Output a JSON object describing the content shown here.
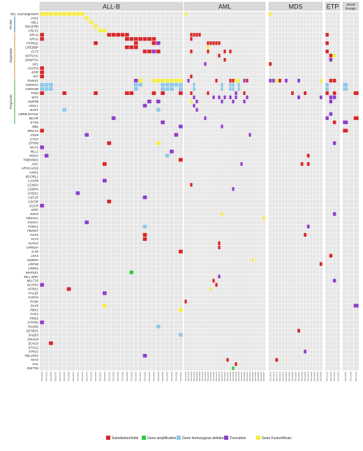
{
  "chart_data": {
    "type": "heatmap",
    "genes": [
      "MLL rearrangement",
      "JAK2",
      "ABL1",
      "PDGFRB",
      "CRLF2",
      "NRAS",
      "KRAS",
      "PTPN11",
      "CREBBP",
      "FLT3",
      "NOTCH1",
      "DNMT3A",
      "NF1",
      "FGFR3",
      "KDR",
      "KIT",
      "RUNX1",
      "CDKN2A",
      "CDKN2B",
      "TP53",
      "WT1",
      "NUP98",
      "ASXL1",
      "IKZF1",
      "CBFB-MYH11",
      "BCOR",
      "ETV6",
      "RB1",
      "BRCA2",
      "CD39",
      "CTCF",
      "EP300",
      "MLH1",
      "MLL2",
      "MSH2",
      "TMEM30A",
      "APC",
      "ARHGAP26",
      "AXIN1",
      "BCORL1",
      "CASP8",
      "CCND2",
      "CEBPA",
      "CHEK2",
      "CSF1R",
      "CSF3R",
      "EGFR",
      "ERG",
      "EZH2",
      "FBXO11",
      "FANCA",
      "FANCL",
      "FBXW7",
      "FGF6",
      "FLT4",
      "GATA2",
      "GRIN2A",
      "IL7R",
      "JAK3",
      "KDM5A",
      "LRP1B",
      "LRRK2",
      "MAP2K1",
      "MLL other",
      "MLLT10",
      "NCOR1",
      "NTRK1",
      "PALB2",
      "PARP4",
      "PASK",
      "PAX5",
      "PBX1",
      "PHF6",
      "PMS2",
      "PTPRD",
      "RAD50",
      "SETBP1",
      "SH2B3",
      "SMAD4",
      "SOX10",
      "STAG2",
      "STK11",
      "TBL1XR1",
      "TET2",
      "VHL",
      "ZNF703"
    ],
    "categories": [
      {
        "label": "Ph-like",
        "start": 1,
        "end": 4,
        "color": "#3d6bb5"
      },
      {
        "label": "Targetable",
        "start": 5,
        "end": 15,
        "color": "#e08a24"
      },
      {
        "label": "Prognostic",
        "start": 16,
        "end": 26,
        "color": "#39a84a"
      }
    ],
    "panels": [
      {
        "title": "ALL-B",
        "samples": [
          "TSH13696",
          "TSH13214",
          "TSH14030",
          "TSH15787",
          "TSH14447",
          "TSH14527",
          "TSH14550",
          "TSH15424",
          "TSH15421",
          "TSH15423",
          "TSH14472",
          "TSH14533",
          "TSH15428",
          "TSH14527",
          "TSH15423",
          "TSH14541",
          "TSH15429",
          "TSH15185",
          "TSH16183",
          "TSH15458",
          "TSH15209",
          "TSH15203",
          "TSH15427",
          "TSH15196",
          "TSH15423",
          "TSH15425",
          "TSH15425",
          "TSH15486",
          "TSH15476",
          "TSH15452",
          "TSH15385",
          "TSH15367"
        ]
      },
      {
        "title": "AML",
        "samples": [
          "TSH14155",
          "TSH14145",
          "TSH14220",
          "TSH14355",
          "TSH14364",
          "TSH14505",
          "TSH14446",
          "TSH14455",
          "TSH14546",
          "TSH15125",
          "TSH15150",
          "TSH15117",
          "TSH15176",
          "TSH15179",
          "TSH15203",
          "TSH15207",
          "TSH15209",
          "TSH15345",
          "TSH15360",
          "TSH15399",
          "TSH15357",
          "TSH15358",
          "TSH15313",
          "TSH15342",
          "TSH15399",
          "TSH15491",
          "TSH15488",
          "TSH15493",
          "TSH15407"
        ]
      },
      {
        "title": "MDS",
        "samples": [
          "TSH14010",
          "TSH14413",
          "TSH14278",
          "TSH14431",
          "TSH14520",
          "TSH14529",
          "TSH15003",
          "TSH15090",
          "TSH15087",
          "TSH15187",
          "TSH15180",
          "TSH15249",
          "TSH15270",
          "TSH15292",
          "TSH15282",
          "TSH15420",
          "TSH15308"
        ]
      },
      {
        "title": "ETP",
        "samples": [
          "TSH13762",
          "TSH15326",
          "TSH15378",
          "TSH13910"
        ]
      },
      {
        "title": "Mixed lineage",
        "samples": [
          "TSH15451",
          "TSH13345",
          "TSH13410"
        ]
      }
    ],
    "cells": [
      [
        0,
        0,
        0,
        4
      ],
      [
        0,
        1,
        0,
        4
      ],
      [
        0,
        2,
        0,
        4
      ],
      [
        0,
        3,
        0,
        4
      ],
      [
        0,
        4,
        0,
        4
      ],
      [
        0,
        5,
        0,
        4
      ],
      [
        0,
        6,
        0,
        4
      ],
      [
        0,
        7,
        0,
        4
      ],
      [
        0,
        8,
        0,
        4
      ],
      [
        0,
        9,
        0,
        4
      ],
      [
        0,
        10,
        1,
        4
      ],
      [
        0,
        11,
        2,
        4
      ],
      [
        0,
        12,
        3,
        4
      ],
      [
        0,
        13,
        4,
        4
      ],
      [
        0,
        14,
        4,
        4
      ],
      [
        0,
        15,
        5,
        0
      ],
      [
        0,
        16,
        5,
        0
      ],
      [
        0,
        17,
        5,
        0
      ],
      [
        0,
        18,
        5,
        0
      ],
      [
        0,
        19,
        5,
        0
      ],
      [
        0,
        0,
        5,
        0
      ],
      [
        0,
        0,
        6,
        0
      ],
      [
        0,
        19,
        6,
        0
      ],
      [
        0,
        20,
        6,
        0
      ],
      [
        0,
        21,
        6,
        0
      ],
      [
        0,
        22,
        6,
        0
      ],
      [
        0,
        23,
        6,
        0
      ],
      [
        0,
        24,
        6,
        0
      ],
      [
        0,
        25,
        6,
        0
      ],
      [
        0,
        12,
        7,
        0
      ],
      [
        0,
        21,
        7,
        0
      ],
      [
        0,
        25,
        7,
        0
      ],
      [
        0,
        26,
        7,
        3
      ],
      [
        0,
        19,
        8,
        0
      ],
      [
        0,
        20,
        8,
        0
      ],
      [
        0,
        21,
        8,
        0
      ],
      [
        0,
        23,
        9,
        0
      ],
      [
        0,
        24,
        9,
        0
      ],
      [
        0,
        25,
        9,
        3
      ],
      [
        0,
        26,
        9,
        0
      ],
      [
        0,
        0,
        13,
        0
      ],
      [
        0,
        0,
        14,
        0
      ],
      [
        0,
        0,
        15,
        0
      ],
      [
        0,
        22,
        16,
        4
      ],
      [
        0,
        25,
        16,
        4
      ],
      [
        0,
        26,
        16,
        4
      ],
      [
        0,
        27,
        16,
        4
      ],
      [
        0,
        28,
        16,
        4
      ],
      [
        0,
        29,
        16,
        4
      ],
      [
        0,
        30,
        16,
        4
      ],
      [
        0,
        31,
        16,
        4
      ],
      [
        0,
        21,
        16,
        3
      ],
      [
        0,
        0,
        17,
        2
      ],
      [
        0,
        1,
        17,
        2
      ],
      [
        0,
        2,
        17,
        2
      ],
      [
        0,
        21,
        17,
        2
      ],
      [
        0,
        22,
        17,
        2
      ],
      [
        0,
        27,
        17,
        2
      ],
      [
        0,
        28,
        17,
        2
      ],
      [
        0,
        29,
        17,
        2
      ],
      [
        0,
        30,
        17,
        2
      ],
      [
        0,
        31,
        17,
        2
      ],
      [
        0,
        0,
        18,
        2
      ],
      [
        0,
        1,
        18,
        2
      ],
      [
        0,
        2,
        18,
        2
      ],
      [
        0,
        21,
        18,
        2
      ],
      [
        0,
        27,
        18,
        2
      ],
      [
        0,
        28,
        18,
        2
      ],
      [
        0,
        29,
        18,
        2
      ],
      [
        0,
        31,
        18,
        2
      ],
      [
        0,
        0,
        19,
        0
      ],
      [
        0,
        5,
        19,
        0
      ],
      [
        0,
        12,
        19,
        0
      ],
      [
        0,
        19,
        19,
        0
      ],
      [
        0,
        20,
        19,
        0
      ],
      [
        0,
        25,
        19,
        0
      ],
      [
        0,
        27,
        19,
        0
      ],
      [
        0,
        31,
        19,
        0
      ],
      [
        0,
        24,
        21,
        3
      ],
      [
        0,
        26,
        21,
        3
      ],
      [
        0,
        23,
        22,
        3
      ],
      [
        0,
        5,
        23,
        2
      ],
      [
        0,
        26,
        23,
        2
      ],
      [
        0,
        16,
        25,
        3
      ],
      [
        0,
        27,
        26,
        3
      ],
      [
        0,
        31,
        27,
        3
      ],
      [
        0,
        0,
        28,
        0
      ],
      [
        0,
        10,
        29,
        3
      ],
      [
        0,
        30,
        29,
        3
      ],
      [
        0,
        15,
        31,
        0
      ],
      [
        0,
        26,
        31,
        4
      ],
      [
        0,
        0,
        32,
        3
      ],
      [
        0,
        29,
        33,
        3
      ],
      [
        0,
        1,
        34,
        3
      ],
      [
        0,
        28,
        34,
        2
      ],
      [
        0,
        31,
        35,
        0
      ],
      [
        0,
        14,
        36,
        0
      ],
      [
        0,
        14,
        40,
        3
      ],
      [
        0,
        8,
        43,
        3
      ],
      [
        0,
        23,
        44,
        3
      ],
      [
        0,
        15,
        45,
        0
      ],
      [
        0,
        0,
        46,
        3
      ],
      [
        0,
        10,
        50,
        3
      ],
      [
        0,
        23,
        51,
        2
      ],
      [
        0,
        23,
        53,
        0
      ],
      [
        0,
        23,
        54,
        0
      ],
      [
        0,
        31,
        57,
        0
      ],
      [
        0,
        20,
        62,
        1
      ],
      [
        0,
        6,
        66,
        0
      ],
      [
        0,
        14,
        67,
        3
      ],
      [
        0,
        0,
        65,
        3
      ],
      [
        0,
        14,
        70,
        4
      ],
      [
        0,
        31,
        71,
        4
      ],
      [
        0,
        0,
        74,
        3
      ],
      [
        0,
        26,
        75,
        2
      ],
      [
        0,
        31,
        77,
        2
      ],
      [
        0,
        2,
        79,
        0
      ],
      [
        0,
        23,
        82,
        3
      ],
      [
        1,
        0,
        0,
        4
      ],
      [
        1,
        2,
        5,
        0
      ],
      [
        1,
        3,
        5,
        0
      ],
      [
        1,
        4,
        5,
        0
      ],
      [
        1,
        5,
        5,
        0
      ],
      [
        1,
        2,
        6,
        0
      ],
      [
        1,
        8,
        7,
        0
      ],
      [
        1,
        9,
        7,
        0
      ],
      [
        1,
        10,
        7,
        0
      ],
      [
        1,
        11,
        7,
        0
      ],
      [
        1,
        12,
        7,
        0
      ],
      [
        1,
        8,
        8,
        4
      ],
      [
        1,
        2,
        9,
        0
      ],
      [
        1,
        8,
        9,
        0
      ],
      [
        1,
        14,
        9,
        0
      ],
      [
        1,
        16,
        9,
        0
      ],
      [
        1,
        12,
        10,
        0
      ],
      [
        1,
        14,
        11,
        0
      ],
      [
        1,
        7,
        12,
        3
      ],
      [
        1,
        2,
        15,
        0
      ],
      [
        1,
        1,
        16,
        3
      ],
      [
        1,
        11,
        16,
        0
      ],
      [
        1,
        16,
        16,
        0
      ],
      [
        1,
        17,
        16,
        0
      ],
      [
        1,
        18,
        16,
        4
      ],
      [
        1,
        19,
        16,
        4
      ],
      [
        1,
        21,
        16,
        3
      ],
      [
        1,
        22,
        16,
        0
      ],
      [
        1,
        3,
        17,
        2
      ],
      [
        1,
        13,
        17,
        2
      ],
      [
        1,
        16,
        17,
        2
      ],
      [
        1,
        17,
        17,
        2
      ],
      [
        1,
        19,
        17,
        2
      ],
      [
        1,
        3,
        18,
        2
      ],
      [
        1,
        13,
        18,
        2
      ],
      [
        1,
        16,
        18,
        2
      ],
      [
        1,
        17,
        18,
        2
      ],
      [
        1,
        19,
        18,
        2
      ],
      [
        1,
        2,
        19,
        0
      ],
      [
        1,
        8,
        19,
        0
      ],
      [
        1,
        18,
        19,
        3
      ],
      [
        1,
        21,
        19,
        0
      ],
      [
        1,
        3,
        20,
        3
      ],
      [
        1,
        10,
        20,
        3
      ],
      [
        1,
        12,
        20,
        3
      ],
      [
        1,
        14,
        20,
        3
      ],
      [
        1,
        16,
        20,
        3
      ],
      [
        1,
        18,
        20,
        3
      ],
      [
        1,
        22,
        20,
        3
      ],
      [
        1,
        2,
        21,
        4
      ],
      [
        1,
        4,
        21,
        3
      ],
      [
        1,
        13,
        21,
        3
      ],
      [
        1,
        17,
        21,
        3
      ],
      [
        1,
        21,
        21,
        3
      ],
      [
        1,
        3,
        22,
        3
      ],
      [
        1,
        4,
        23,
        3
      ],
      [
        1,
        7,
        25,
        3
      ],
      [
        1,
        13,
        27,
        3
      ],
      [
        1,
        23,
        29,
        3
      ],
      [
        1,
        20,
        36,
        3
      ],
      [
        1,
        2,
        41,
        0
      ],
      [
        1,
        17,
        42,
        3
      ],
      [
        1,
        13,
        48,
        4
      ],
      [
        1,
        28,
        49,
        4
      ],
      [
        1,
        12,
        55,
        0
      ],
      [
        1,
        12,
        56,
        0
      ],
      [
        1,
        24,
        59,
        4
      ],
      [
        1,
        10,
        64,
        0
      ],
      [
        1,
        9,
        66,
        4
      ],
      [
        1,
        12,
        63,
        3
      ],
      [
        1,
        11,
        65,
        0
      ],
      [
        1,
        0,
        69,
        0
      ],
      [
        1,
        15,
        83,
        0
      ],
      [
        1,
        18,
        84,
        0
      ],
      [
        1,
        17,
        85,
        1
      ],
      [
        2,
        0,
        0,
        4
      ],
      [
        2,
        0,
        16,
        3
      ],
      [
        2,
        1,
        16,
        3
      ],
      [
        2,
        2,
        16,
        4
      ],
      [
        2,
        3,
        16,
        0
      ],
      [
        2,
        5,
        16,
        3
      ],
      [
        2,
        9,
        16,
        3
      ],
      [
        2,
        16,
        16,
        4
      ],
      [
        2,
        7,
        19,
        0
      ],
      [
        2,
        11,
        19,
        0
      ],
      [
        2,
        9,
        20,
        3
      ],
      [
        2,
        16,
        20,
        3
      ],
      [
        2,
        0,
        12,
        0
      ],
      [
        2,
        12,
        34,
        0
      ],
      [
        2,
        10,
        36,
        0
      ],
      [
        2,
        12,
        36,
        0
      ],
      [
        2,
        12,
        51,
        3
      ],
      [
        2,
        11,
        53,
        0
      ],
      [
        2,
        16,
        60,
        0
      ],
      [
        2,
        9,
        76,
        0
      ],
      [
        2,
        11,
        81,
        3
      ],
      [
        2,
        2,
        83,
        0
      ],
      [
        3,
        0,
        5,
        0
      ],
      [
        3,
        0,
        7,
        0
      ],
      [
        3,
        0,
        9,
        0
      ],
      [
        3,
        1,
        10,
        0
      ],
      [
        3,
        2,
        10,
        4
      ],
      [
        3,
        1,
        11,
        3
      ],
      [
        3,
        1,
        16,
        0
      ],
      [
        3,
        2,
        16,
        0
      ],
      [
        3,
        0,
        17,
        2
      ],
      [
        3,
        0,
        18,
        2
      ],
      [
        3,
        0,
        19,
        0
      ],
      [
        3,
        2,
        19,
        0
      ],
      [
        3,
        1,
        20,
        3
      ],
      [
        3,
        2,
        20,
        3
      ],
      [
        3,
        1,
        21,
        3
      ],
      [
        3,
        1,
        24,
        3
      ],
      [
        3,
        0,
        25,
        3
      ],
      [
        3,
        2,
        26,
        0
      ],
      [
        3,
        2,
        31,
        3
      ],
      [
        3,
        2,
        48,
        3
      ],
      [
        3,
        1,
        58,
        0
      ],
      [
        3,
        2,
        64,
        3
      ],
      [
        4,
        0,
        17,
        2
      ],
      [
        4,
        0,
        18,
        2
      ],
      [
        4,
        2,
        19,
        0
      ],
      [
        4,
        2,
        25,
        0
      ],
      [
        4,
        0,
        26,
        3
      ],
      [
        4,
        0,
        28,
        0
      ],
      [
        4,
        2,
        70,
        3
      ]
    ],
    "types": [
      {
        "name": "Substitution/Indel",
        "color": "#d62728"
      },
      {
        "name": "Gene amplification",
        "color": "#2ecc40"
      },
      {
        "name": "Gene homozygous deletion",
        "color": "#8ec7e8"
      },
      {
        "name": "Truncation",
        "color": "#8e3fc9"
      },
      {
        "name": "Gene Fusion/Rearr.",
        "color": "#f5ec42"
      }
    ]
  }
}
